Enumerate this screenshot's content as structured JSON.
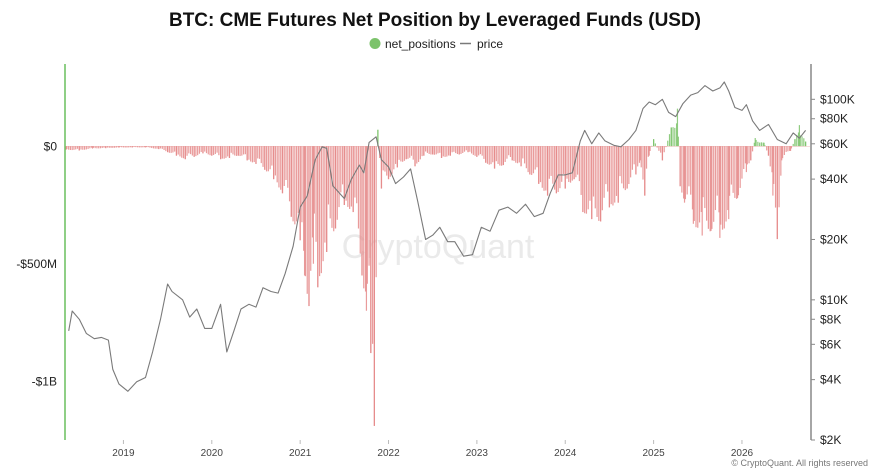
{
  "chart_data": {
    "type": "bar",
    "title": "BTC: CME Futures Net Position by Leveraged Funds (USD)",
    "legend": [
      {
        "name": "net_positions",
        "marker": "circle",
        "color": "#7cc36b"
      },
      {
        "name": "price",
        "marker": "line",
        "color": "#7a7a7a"
      }
    ],
    "watermark": "CryptoQuant",
    "copyright": "© CryptoQuant. All rights reserved",
    "x_ticks": [
      "2019",
      "2020",
      "2021",
      "2022",
      "2023",
      "2024",
      "2025",
      "2026"
    ],
    "x_range": [
      2018.35,
      2026.77
    ],
    "y_left": {
      "unit": "USD",
      "range": [
        -1250000000,
        350000000
      ],
      "ticks": [
        {
          "value": 0,
          "label": "$0"
        },
        {
          "value": -500000000,
          "label": "-$500M"
        },
        {
          "value": -1000000000,
          "label": "-$1B"
        }
      ]
    },
    "y_right": {
      "scale": "log",
      "range": [
        2000,
        150000
      ],
      "ticks": [
        {
          "value": 100000,
          "label": "$100K"
        },
        {
          "value": 80000,
          "label": "$80K"
        },
        {
          "value": 60000,
          "label": "$60K"
        },
        {
          "value": 40000,
          "label": "$40K"
        },
        {
          "value": 20000,
          "label": "$20K"
        },
        {
          "value": 10000,
          "label": "$10K"
        },
        {
          "value": 8000,
          "label": "$8K"
        },
        {
          "value": 6000,
          "label": "$6K"
        },
        {
          "value": 4000,
          "label": "$4K"
        },
        {
          "value": 2000,
          "label": "$2K"
        }
      ]
    },
    "colors": {
      "positive": "#7cc36b",
      "negative": "#e58a8a",
      "price": "#7a7a7a",
      "left_axis": "#6abf5e",
      "right_axis": "#888888"
    },
    "series": [
      {
        "name": "net_positions",
        "type": "bar",
        "points": [
          [
            2018.35,
            -15000000
          ],
          [
            2018.5,
            -18000000
          ],
          [
            2018.65,
            -10000000
          ],
          [
            2018.8,
            -8000000
          ],
          [
            2018.95,
            -6000000
          ],
          [
            2019.1,
            -5000000
          ],
          [
            2019.25,
            -5000000
          ],
          [
            2019.4,
            -12000000
          ],
          [
            2019.5,
            -25000000
          ],
          [
            2019.6,
            -40000000
          ],
          [
            2019.7,
            -55000000
          ],
          [
            2019.8,
            -45000000
          ],
          [
            2019.9,
            -30000000
          ],
          [
            2020.0,
            -40000000
          ],
          [
            2020.1,
            -55000000
          ],
          [
            2020.2,
            -50000000
          ],
          [
            2020.3,
            -40000000
          ],
          [
            2020.4,
            -60000000
          ],
          [
            2020.5,
            -75000000
          ],
          [
            2020.6,
            -100000000
          ],
          [
            2020.7,
            -140000000
          ],
          [
            2020.8,
            -200000000
          ],
          [
            2020.9,
            -300000000
          ],
          [
            2021.0,
            -400000000
          ],
          [
            2021.05,
            -550000000
          ],
          [
            2021.1,
            -680000000
          ],
          [
            2021.15,
            -500000000
          ],
          [
            2021.2,
            -600000000
          ],
          [
            2021.3,
            -450000000
          ],
          [
            2021.4,
            -350000000
          ],
          [
            2021.5,
            -250000000
          ],
          [
            2021.6,
            -280000000
          ],
          [
            2021.7,
            -550000000
          ],
          [
            2021.75,
            -700000000
          ],
          [
            2021.8,
            -880000000
          ],
          [
            2021.84,
            -1190000000
          ],
          [
            2021.88,
            70000000
          ],
          [
            2021.92,
            -180000000
          ],
          [
            2022.0,
            -140000000
          ],
          [
            2022.1,
            -90000000
          ],
          [
            2022.2,
            -55000000
          ],
          [
            2022.3,
            -85000000
          ],
          [
            2022.4,
            -40000000
          ],
          [
            2022.5,
            -35000000
          ],
          [
            2022.6,
            -50000000
          ],
          [
            2022.7,
            -40000000
          ],
          [
            2022.8,
            -35000000
          ],
          [
            2022.9,
            -25000000
          ],
          [
            2023.0,
            -45000000
          ],
          [
            2023.1,
            -70000000
          ],
          [
            2023.2,
            -95000000
          ],
          [
            2023.3,
            -80000000
          ],
          [
            2023.4,
            -60000000
          ],
          [
            2023.5,
            -85000000
          ],
          [
            2023.6,
            -120000000
          ],
          [
            2023.7,
            -160000000
          ],
          [
            2023.8,
            -210000000
          ],
          [
            2023.9,
            -200000000
          ],
          [
            2024.0,
            -180000000
          ],
          [
            2024.1,
            -140000000
          ],
          [
            2024.2,
            -280000000
          ],
          [
            2024.3,
            -310000000
          ],
          [
            2024.4,
            -320000000
          ],
          [
            2024.5,
            -260000000
          ],
          [
            2024.6,
            -240000000
          ],
          [
            2024.7,
            -180000000
          ],
          [
            2024.8,
            -120000000
          ],
          [
            2024.85,
            -60000000
          ],
          [
            2024.9,
            -210000000
          ],
          [
            2024.95,
            -40000000
          ],
          [
            2025.0,
            30000000
          ],
          [
            2025.1,
            -60000000
          ],
          [
            2025.2,
            80000000
          ],
          [
            2025.27,
            160000000
          ],
          [
            2025.3,
            -170000000
          ],
          [
            2025.35,
            -240000000
          ],
          [
            2025.45,
            -330000000
          ],
          [
            2025.55,
            -380000000
          ],
          [
            2025.65,
            -360000000
          ],
          [
            2025.75,
            -390000000
          ],
          [
            2025.85,
            -310000000
          ],
          [
            2025.95,
            -220000000
          ],
          [
            2026.05,
            -110000000
          ],
          [
            2026.1,
            -60000000
          ],
          [
            2026.15,
            35000000
          ],
          [
            2026.25,
            15000000
          ],
          [
            2026.3,
            -40000000
          ],
          [
            2026.35,
            -210000000
          ],
          [
            2026.4,
            -395000000
          ],
          [
            2026.45,
            -60000000
          ],
          [
            2026.55,
            -20000000
          ],
          [
            2026.6,
            30000000
          ],
          [
            2026.65,
            90000000
          ],
          [
            2026.72,
            20000000
          ]
        ]
      },
      {
        "name": "price",
        "type": "line",
        "points": [
          [
            2018.38,
            7000
          ],
          [
            2018.42,
            8800
          ],
          [
            2018.5,
            8000
          ],
          [
            2018.58,
            6800
          ],
          [
            2018.67,
            6400
          ],
          [
            2018.75,
            6500
          ],
          [
            2018.83,
            6300
          ],
          [
            2018.88,
            4500
          ],
          [
            2018.95,
            3800
          ],
          [
            2019.05,
            3500
          ],
          [
            2019.15,
            3900
          ],
          [
            2019.25,
            4100
          ],
          [
            2019.33,
            5500
          ],
          [
            2019.42,
            8000
          ],
          [
            2019.5,
            12000
          ],
          [
            2019.55,
            11000
          ],
          [
            2019.67,
            10000
          ],
          [
            2019.75,
            8200
          ],
          [
            2019.83,
            9000
          ],
          [
            2019.92,
            7200
          ],
          [
            2020.0,
            7200
          ],
          [
            2020.1,
            9500
          ],
          [
            2020.17,
            5500
          ],
          [
            2020.25,
            7000
          ],
          [
            2020.33,
            9000
          ],
          [
            2020.42,
            9500
          ],
          [
            2020.5,
            9200
          ],
          [
            2020.58,
            11500
          ],
          [
            2020.67,
            11000
          ],
          [
            2020.75,
            10800
          ],
          [
            2020.83,
            13500
          ],
          [
            2020.92,
            18500
          ],
          [
            2021.0,
            29000
          ],
          [
            2021.08,
            33000
          ],
          [
            2021.17,
            50000
          ],
          [
            2021.25,
            58000
          ],
          [
            2021.3,
            57000
          ],
          [
            2021.37,
            37000
          ],
          [
            2021.42,
            35000
          ],
          [
            2021.5,
            32000
          ],
          [
            2021.58,
            40000
          ],
          [
            2021.67,
            47000
          ],
          [
            2021.72,
            43000
          ],
          [
            2021.78,
            61000
          ],
          [
            2021.86,
            65000
          ],
          [
            2021.92,
            50000
          ],
          [
            2022.0,
            46000
          ],
          [
            2022.08,
            38000
          ],
          [
            2022.17,
            41000
          ],
          [
            2022.25,
            45000
          ],
          [
            2022.33,
            31000
          ],
          [
            2022.42,
            20000
          ],
          [
            2022.5,
            21000
          ],
          [
            2022.58,
            23000
          ],
          [
            2022.67,
            19500
          ],
          [
            2022.75,
            19500
          ],
          [
            2022.85,
            16500
          ],
          [
            2022.95,
            16800
          ],
          [
            2023.05,
            23000
          ],
          [
            2023.15,
            22000
          ],
          [
            2023.25,
            28000
          ],
          [
            2023.35,
            29000
          ],
          [
            2023.45,
            27000
          ],
          [
            2023.55,
            30000
          ],
          [
            2023.65,
            26000
          ],
          [
            2023.75,
            27000
          ],
          [
            2023.83,
            34000
          ],
          [
            2023.92,
            42000
          ],
          [
            2024.0,
            42000
          ],
          [
            2024.08,
            43000
          ],
          [
            2024.17,
            62000
          ],
          [
            2024.22,
            70000
          ],
          [
            2024.3,
            60000
          ],
          [
            2024.38,
            68000
          ],
          [
            2024.45,
            62000
          ],
          [
            2024.55,
            59000
          ],
          [
            2024.63,
            58000
          ],
          [
            2024.72,
            63000
          ],
          [
            2024.8,
            70000
          ],
          [
            2024.88,
            90000
          ],
          [
            2024.95,
            97000
          ],
          [
            2025.02,
            94000
          ],
          [
            2025.1,
            100000
          ],
          [
            2025.17,
            86000
          ],
          [
            2025.25,
            82000
          ],
          [
            2025.33,
            95000
          ],
          [
            2025.42,
            105000
          ],
          [
            2025.5,
            108000
          ],
          [
            2025.58,
            117000
          ],
          [
            2025.67,
            110000
          ],
          [
            2025.75,
            114000
          ],
          [
            2025.8,
            122000
          ],
          [
            2025.85,
            110000
          ],
          [
            2025.92,
            91000
          ],
          [
            2026.0,
            88000
          ],
          [
            2026.05,
            94000
          ],
          [
            2026.12,
            78000
          ],
          [
            2026.2,
            70000
          ],
          [
            2026.3,
            75000
          ],
          [
            2026.4,
            63000
          ],
          [
            2026.5,
            60000
          ],
          [
            2026.58,
            68000
          ],
          [
            2026.65,
            64000
          ],
          [
            2026.72,
            70000
          ]
        ]
      }
    ]
  }
}
